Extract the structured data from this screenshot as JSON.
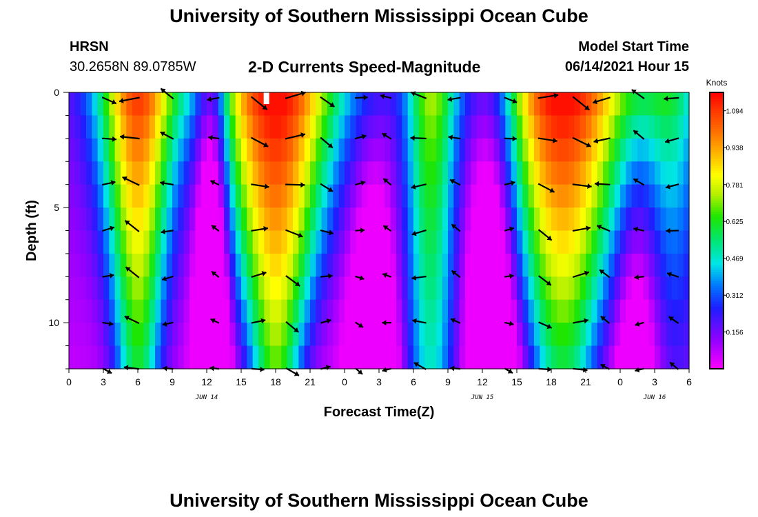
{
  "page": {
    "title_top": "University of Southern Mississippi Ocean Cube",
    "title_bottom": "University of Southern Mississippi Ocean Cube",
    "station_name": "HRSN",
    "station_coords": "30.2658N  89.0785W",
    "plot_title": "2-D Currents Speed-Magnitude",
    "model_label": "Model Start Time",
    "model_time": "06/14/2021 Hour 15"
  },
  "chart_data": {
    "type": "heatmap",
    "title": "2-D Currents Speed-Magnitude",
    "xlabel": "Forecast Time(Z)",
    "ylabel": "Depth (ft)",
    "colorbar_label": "Knots",
    "colorbar_ticks": [
      "1.094",
      "0.938",
      "0.781",
      "0.625",
      "0.469",
      "0.312",
      "0.156"
    ],
    "colorbar_range": [
      0.0,
      1.172
    ],
    "x_tick_labels": [
      "0",
      "3",
      "6",
      "9",
      "12",
      "15",
      "18",
      "21",
      "0",
      "3",
      "6",
      "9",
      "12",
      "15",
      "18",
      "21",
      "0",
      "3",
      "6"
    ],
    "x_range_hours": [
      0,
      54
    ],
    "date_labels": [
      {
        "label": "JUN 14",
        "hour": 12
      },
      {
        "label": "JUN 15",
        "hour": 36
      },
      {
        "label": "JUN 16",
        "hour": 51
      }
    ],
    "y_tick_labels": [
      "0",
      "5",
      "10"
    ],
    "y_range_ft": [
      0,
      12
    ],
    "depth_layers_ft": [
      0,
      1,
      2,
      3,
      4,
      5,
      6,
      7,
      8,
      9,
      10,
      11,
      12
    ],
    "speed_profile_peak_hours": [
      {
        "hour": 18,
        "peak_knots": 1.1
      },
      {
        "hour": 43,
        "peak_knots": 1.1
      }
    ],
    "speed_profile_low_hours": [
      {
        "hour": 12,
        "min_knots": 0.05
      },
      {
        "hour": 37,
        "min_knots": 0.0
      }
    ],
    "vector_columns_hours": [
      3,
      6,
      9,
      13,
      16,
      19,
      22,
      25,
      28,
      31,
      34,
      38,
      41,
      44,
      47,
      50,
      53
    ],
    "vector_rows_ft": [
      0,
      2,
      4,
      6,
      8,
      10,
      12
    ]
  }
}
